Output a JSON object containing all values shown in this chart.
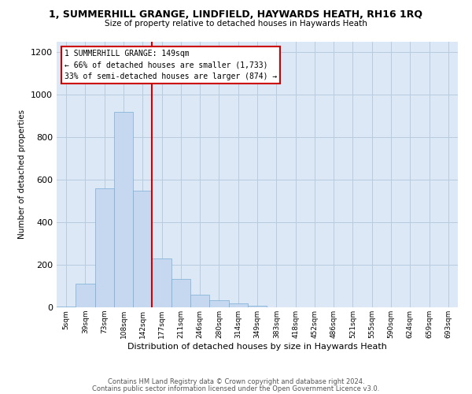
{
  "title": "1, SUMMERHILL GRANGE, LINDFIELD, HAYWARDS HEATH, RH16 1RQ",
  "subtitle": "Size of property relative to detached houses in Haywards Heath",
  "xlabel": "Distribution of detached houses by size in Haywards Heath",
  "ylabel": "Number of detached properties",
  "bin_labels": [
    "5sqm",
    "39sqm",
    "73sqm",
    "108sqm",
    "142sqm",
    "177sqm",
    "211sqm",
    "246sqm",
    "280sqm",
    "314sqm",
    "349sqm",
    "383sqm",
    "418sqm",
    "452sqm",
    "486sqm",
    "521sqm",
    "555sqm",
    "590sqm",
    "624sqm",
    "659sqm",
    "693sqm"
  ],
  "bar_values": [
    5,
    110,
    560,
    920,
    550,
    230,
    135,
    60,
    35,
    20,
    8,
    0,
    0,
    0,
    0,
    0,
    0,
    0,
    0,
    0,
    0
  ],
  "bar_color": "#c5d8ef",
  "bar_edgecolor": "#7aadd4",
  "vline_color": "#cc0000",
  "ylim": [
    0,
    1250
  ],
  "yticks": [
    0,
    200,
    400,
    600,
    800,
    1000,
    1200
  ],
  "annotation_title": "1 SUMMERHILL GRANGE: 149sqm",
  "annotation_line1": "← 66% of detached houses are smaller (1,733)",
  "annotation_line2": "33% of semi-detached houses are larger (874) →",
  "annotation_box_color": "#ffffff",
  "annotation_box_edgecolor": "#cc0000",
  "footer1": "Contains HM Land Registry data © Crown copyright and database right 2024.",
  "footer2": "Contains public sector information licensed under the Open Government Licence v3.0.",
  "bg_color": "#ffffff",
  "plot_bg_color": "#dce8f5",
  "grid_color": "#b8ccdf"
}
